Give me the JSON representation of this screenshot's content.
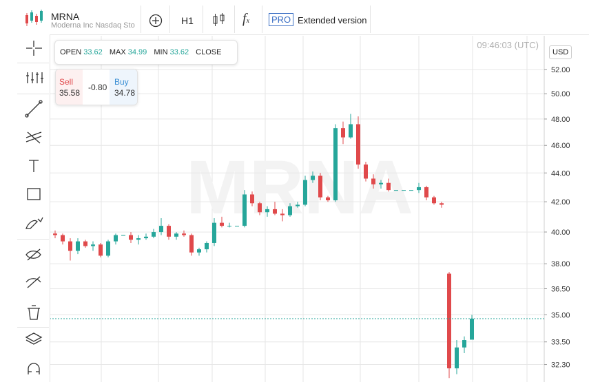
{
  "header": {
    "symbol": "MRNA",
    "description": "Moderna Inc Nasdaq Sto",
    "interval": "H1",
    "pro": "PRO",
    "extended": "Extended version"
  },
  "ohlc": {
    "open_label": "OPEN",
    "max_label": "MAX",
    "min_label": "MIN",
    "close_label": "CLOSE"
  },
  "trade": {
    "sell_label": "Sell",
    "sell": "35.58",
    "spread": "-0.80",
    "buy_label": "Buy",
    "buy": "34.78"
  },
  "time": "09:46:03 (UTC)",
  "currency": "USD",
  "watermark": "MRNA",
  "chart_data": {
    "type": "candlestick",
    "log": true,
    "grid": true,
    "up_color": "#26a69a",
    "down_color": "#e0494b",
    "last_line_color": "#26a69a",
    "open": [
      39.9,
      39.8,
      39.4,
      38.8,
      39.4,
      39.1,
      39.2,
      38.5,
      39.4,
      39.8,
      39.8,
      39.5,
      39.6,
      39.7,
      40.0,
      40.4,
      39.7,
      39.9,
      39.8,
      38.7,
      38.9,
      39.3,
      40.6,
      40.4,
      40.4,
      40.4,
      42.5,
      41.9,
      41.3,
      41.5,
      41.2,
      41.1,
      41.7,
      41.8,
      43.5,
      43.8,
      42.3,
      42.1,
      47.3,
      46.6,
      47.6,
      44.6,
      43.6,
      43.2,
      43.3,
      42.8,
      42.8,
      42.8,
      42.8,
      43.0,
      42.3,
      41.9,
      37.4,
      32.1,
      33.2,
      33.62
    ],
    "high": [
      40.1,
      39.9,
      39.6,
      39.6,
      39.5,
      39.4,
      39.3,
      39.5,
      39.9,
      39.8,
      40.0,
      39.8,
      39.9,
      40.2,
      40.9,
      40.5,
      40.0,
      40.1,
      39.9,
      39.0,
      39.4,
      40.9,
      41.0,
      40.6,
      40.4,
      42.8,
      42.7,
      42.0,
      41.7,
      42.0,
      41.5,
      41.9,
      42.0,
      43.8,
      44.1,
      44.0,
      42.4,
      47.6,
      47.8,
      48.4,
      48.2,
      44.8,
      43.9,
      43.5,
      43.6,
      42.8,
      42.8,
      42.8,
      43.3,
      43.1,
      42.4,
      42.0,
      37.5,
      33.6,
      33.8,
      34.99
    ],
    "low": [
      39.6,
      39.2,
      38.2,
      38.6,
      39.0,
      38.8,
      38.4,
      38.4,
      39.2,
      39.8,
      39.3,
      39.2,
      39.5,
      39.6,
      39.8,
      39.5,
      39.5,
      39.7,
      38.5,
      38.5,
      38.7,
      39.1,
      40.3,
      40.3,
      40.4,
      40.3,
      41.7,
      41.1,
      41.0,
      41.1,
      40.7,
      41.0,
      41.6,
      41.7,
      43.3,
      42.1,
      42.0,
      42.0,
      46.1,
      46.5,
      44.3,
      43.4,
      42.9,
      42.9,
      42.7,
      42.8,
      42.8,
      42.8,
      42.6,
      42.1,
      41.8,
      41.6,
      31.6,
      31.8,
      32.9,
      33.62
    ],
    "close": [
      39.8,
      39.4,
      38.8,
      39.4,
      39.1,
      39.2,
      38.5,
      39.4,
      39.8,
      39.8,
      39.5,
      39.6,
      39.7,
      40.0,
      40.4,
      39.7,
      39.9,
      39.8,
      38.7,
      38.9,
      39.3,
      40.6,
      40.4,
      40.4,
      40.4,
      42.5,
      41.9,
      41.3,
      41.5,
      41.2,
      41.1,
      41.7,
      41.8,
      43.5,
      43.8,
      42.3,
      42.1,
      47.3,
      46.6,
      47.6,
      44.6,
      43.6,
      43.2,
      43.3,
      42.8,
      42.8,
      42.8,
      42.8,
      43.0,
      42.3,
      41.9,
      41.8,
      32.1,
      33.2,
      33.6,
      34.78
    ],
    "ylim": [
      31.4,
      54.9
    ],
    "yticks": [
      {
        "value": 52,
        "label": "52.00"
      },
      {
        "value": 50,
        "label": "50.00"
      },
      {
        "value": 48,
        "label": "48.00"
      },
      {
        "value": 46,
        "label": "46.00"
      },
      {
        "value": 44,
        "label": "44.00"
      },
      {
        "value": 42,
        "label": "42.00"
      },
      {
        "value": 40,
        "label": "40.00"
      },
      {
        "value": 38,
        "label": "38.00"
      },
      {
        "value": 36.5,
        "label": "36.50"
      },
      {
        "value": 35,
        "label": "35.00"
      },
      {
        "value": 33.5,
        "label": "33.50"
      },
      {
        "value": 32.3,
        "label": "32.30"
      }
    ]
  }
}
